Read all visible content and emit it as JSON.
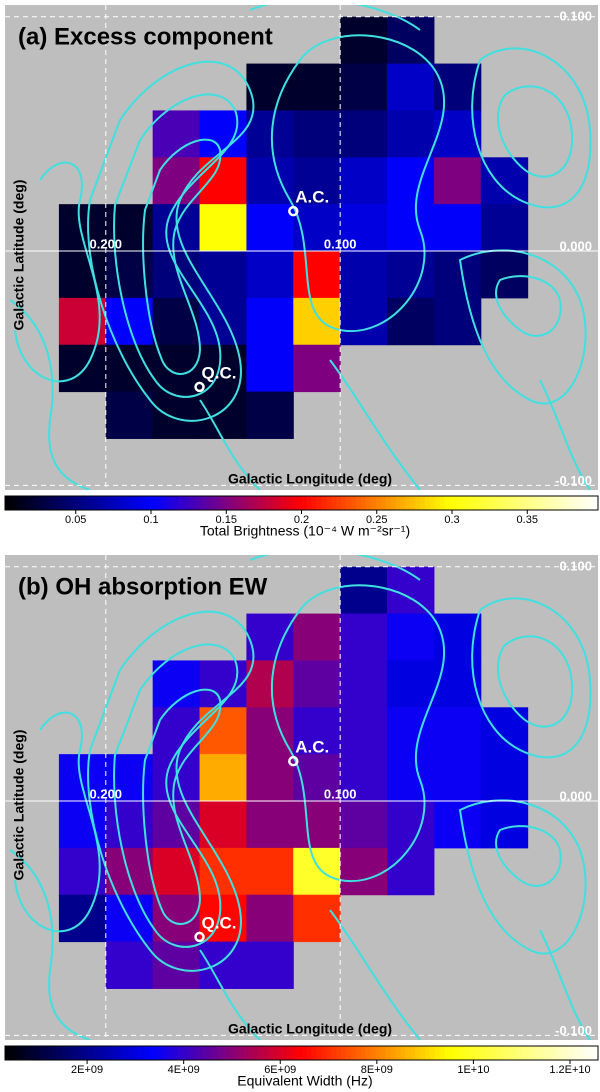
{
  "chart_data": [
    {
      "type": "heatmap",
      "title": "(a) Excess component",
      "x_label": "Galactic Longitude (deg)",
      "y_label": "Galactic Latitude (deg)",
      "xlim": [
        0.243,
        -0.01
      ],
      "ylim": [
        -0.102,
        0.105
      ],
      "xticks": [
        {
          "value": 0.2,
          "label": "0.200"
        },
        {
          "value": 0.1,
          "label": "0.100"
        }
      ],
      "yticks": [
        {
          "value": 0.1,
          "label": "0.100"
        },
        {
          "value": 0,
          "label": "0.000"
        },
        {
          "value": -0.1,
          "label": "-0.100"
        }
      ],
      "grid": true,
      "x": [
        0.21,
        0.19,
        0.17,
        0.15,
        0.13,
        0.11,
        0.09,
        0.07,
        0.05,
        0.03
      ],
      "y": [
        0.09,
        0.07,
        0.05,
        0.03,
        0.01,
        -0.01,
        -0.03,
        -0.05,
        -0.07
      ],
      "values": [
        [
          null,
          null,
          null,
          null,
          null,
          null,
          0.02,
          0.04,
          null,
          null
        ],
        [
          null,
          null,
          null,
          null,
          0.02,
          0.02,
          0.03,
          0.08,
          0.05,
          null
        ],
        [
          null,
          null,
          0.13,
          0.1,
          0.06,
          0.05,
          0.05,
          0.07,
          0.08,
          null
        ],
        [
          null,
          null,
          0.15,
          0.2,
          0.07,
          0.06,
          0.08,
          0.1,
          0.15,
          0.07
        ],
        [
          0.02,
          0.02,
          0.06,
          0.3,
          0.1,
          0.08,
          0.09,
          0.1,
          0.1,
          0.06
        ],
        [
          0.02,
          0.03,
          0.05,
          0.06,
          0.08,
          0.2,
          0.07,
          0.06,
          0.05,
          0.04
        ],
        [
          0.18,
          0.1,
          0.03,
          0.06,
          0.1,
          0.28,
          0.07,
          0.04,
          0.05,
          null
        ],
        [
          0.02,
          0.02,
          0.02,
          0.02,
          0.1,
          0.15,
          null,
          null,
          null,
          null
        ],
        [
          null,
          0.03,
          0.02,
          0.02,
          0.03,
          null,
          null,
          null,
          null,
          null
        ]
      ],
      "colormap": [
        "#000000",
        "#0000ff",
        "#ff0000",
        "#ffff00",
        "#ffffff"
      ],
      "colorbar": {
        "label": "Total Brightness (10⁻⁴ W m⁻²sr⁻¹)",
        "lim": [
          0.003,
          0.397
        ],
        "ticks": [
          0.05,
          0.1,
          0.15,
          0.2,
          0.25,
          0.3,
          0.35
        ]
      },
      "markers": [
        {
          "label": "A.C.",
          "x": 0.12,
          "y": 0.017
        },
        {
          "label": "Q.C.",
          "x": 0.16,
          "y": -0.058
        }
      ]
    },
    {
      "type": "heatmap",
      "title": "(b) OH absorption EW",
      "x_label": "Galactic Longitude (deg)",
      "y_label": "Galactic Latitude (deg)",
      "xlim": [
        0.243,
        -0.01
      ],
      "ylim": [
        -0.102,
        0.105
      ],
      "xticks": [
        {
          "value": 0.2,
          "label": "0.200"
        },
        {
          "value": 0.1,
          "label": "0.100"
        }
      ],
      "yticks": [
        {
          "value": 0.1,
          "label": "0.100"
        },
        {
          "value": 0,
          "label": "0.000"
        },
        {
          "value": -0.1,
          "label": "-0.100"
        }
      ],
      "grid": true,
      "x": [
        0.21,
        0.19,
        0.17,
        0.15,
        0.13,
        0.11,
        0.09,
        0.07,
        0.05,
        0.03
      ],
      "y": [
        0.09,
        0.07,
        0.05,
        0.03,
        0.01,
        -0.01,
        -0.03,
        -0.05,
        -0.07
      ],
      "values": [
        [
          null,
          null,
          null,
          null,
          null,
          null,
          2000000000,
          4000000000,
          null,
          null
        ],
        [
          null,
          null,
          null,
          null,
          4000000000,
          5000000000,
          4000000000,
          3500000000,
          3000000000,
          null
        ],
        [
          null,
          null,
          3500000000,
          4000000000,
          5500000000,
          4500000000,
          4000000000,
          3000000000,
          3000000000,
          null
        ],
        [
          null,
          null,
          4000000000,
          7500000000,
          5000000000,
          4000000000,
          4000000000,
          3500000000,
          3500000000,
          3000000000
        ],
        [
          3500000000,
          3500000000,
          4000000000,
          8500000000,
          5000000000,
          4500000000,
          4000000000,
          3500000000,
          3500000000,
          3000000000
        ],
        [
          3500000000,
          4000000000,
          4500000000,
          6000000000,
          5000000000,
          5000000000,
          4500000000,
          4000000000,
          3500000000,
          3000000000
        ],
        [
          4000000000,
          5000000000,
          6000000000,
          7000000000,
          7000000000,
          10000000000,
          5000000000,
          4000000000,
          null,
          null
        ],
        [
          2000000000,
          3500000000,
          5000000000,
          6500000000,
          5000000000,
          7000000000,
          null,
          null,
          null,
          null
        ],
        [
          null,
          4000000000,
          4500000000,
          4000000000,
          4000000000,
          null,
          null,
          null,
          null,
          null
        ]
      ],
      "colormap": [
        "#000000",
        "#0000ff",
        "#ff0000",
        "#ffff00",
        "#ffffff"
      ],
      "colorbar": {
        "label": "Equivalent Width (Hz)",
        "lim": [
          300000000,
          12580000000
        ],
        "ticks": [
          {
            "value": 2000000000,
            "label": "2E+09"
          },
          {
            "value": 4000000000,
            "label": "4E+09"
          },
          {
            "value": 6000000000,
            "label": "6E+09"
          },
          {
            "value": 8000000000,
            "label": "8E+09"
          },
          {
            "value": 10000000000,
            "label": "1E+10"
          },
          {
            "value": 12000000000,
            "label": "1.2E+10"
          }
        ]
      },
      "markers": [
        {
          "label": "A.C.",
          "x": 0.12,
          "y": 0.017
        },
        {
          "label": "Q.C.",
          "x": 0.16,
          "y": -0.058
        }
      ]
    }
  ]
}
